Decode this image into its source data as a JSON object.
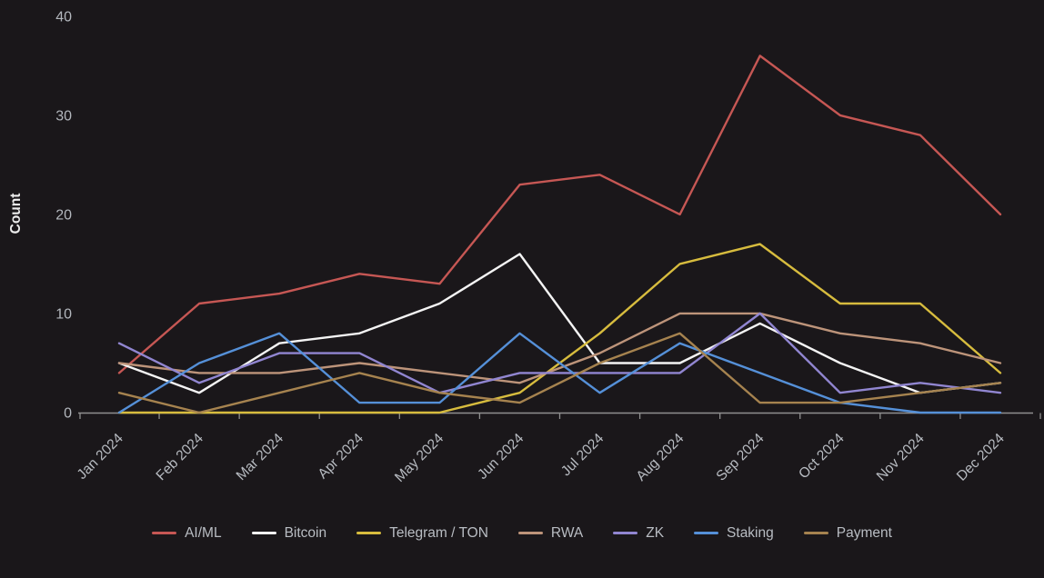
{
  "chart_data": {
    "type": "line",
    "title": "",
    "xlabel": "",
    "ylabel": "Count",
    "ylim": [
      0,
      40
    ],
    "y_ticks": [
      0,
      10,
      20,
      30,
      40
    ],
    "grid": false,
    "legend_position": "bottom",
    "background_color": "#1a171a",
    "axis_color": "#8f8f8f",
    "tick_label_color": "#b8bcc2",
    "categories": [
      "Jan 2024",
      "Feb 2024",
      "Mar 2024",
      "Apr 2024",
      "May 2024",
      "Jun 2024",
      "Jul 2024",
      "Aug 2024",
      "Sep 2024",
      "Oct 2024",
      "Nov 2024",
      "Dec 2024"
    ],
    "series": [
      {
        "name": "AI/ML",
        "color": "#c65754",
        "values": [
          4,
          11,
          12,
          14,
          13,
          23,
          24,
          20,
          36,
          30,
          28,
          20
        ]
      },
      {
        "name": "Bitcoin",
        "color": "#f4f4f4",
        "values": [
          5,
          2,
          7,
          8,
          11,
          16,
          5,
          5,
          9,
          5,
          2,
          3
        ]
      },
      {
        "name": "Telegram / TON",
        "color": "#d7bc3e",
        "values": [
          0,
          0,
          0,
          0,
          0,
          2,
          8,
          15,
          17,
          11,
          11,
          4
        ]
      },
      {
        "name": "RWA",
        "color": "#bd947a",
        "values": [
          5,
          4,
          4,
          5,
          4,
          3,
          6,
          10,
          10,
          8,
          7,
          5
        ]
      },
      {
        "name": "ZK",
        "color": "#9186d1",
        "values": [
          7,
          3,
          6,
          6,
          2,
          4,
          4,
          4,
          10,
          2,
          3,
          2
        ]
      },
      {
        "name": "Staking",
        "color": "#5590d8",
        "values": [
          0,
          5,
          8,
          1,
          1,
          8,
          2,
          7,
          4,
          1,
          0,
          0
        ]
      },
      {
        "name": "Payment",
        "color": "#a6834f",
        "values": [
          2,
          0,
          2,
          4,
          2,
          1,
          5,
          8,
          1,
          1,
          2,
          3
        ]
      }
    ]
  }
}
